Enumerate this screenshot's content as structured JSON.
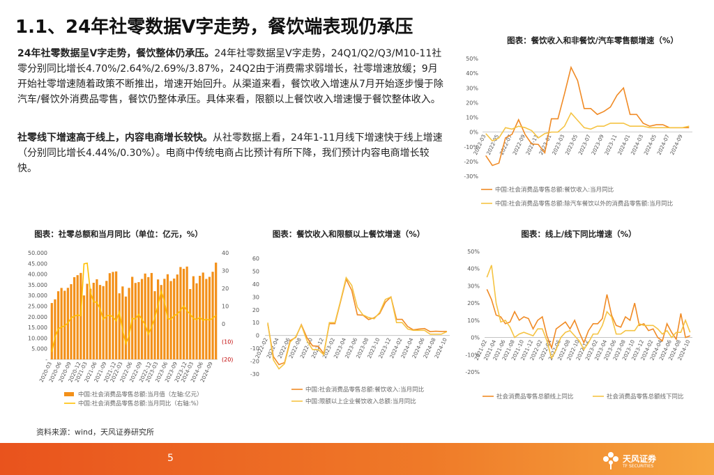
{
  "title": "1.1、24年社零数据V字走势，餐饮端表现仍承压",
  "paragraphs": [
    {
      "lead": "24年社零数据呈V字走势，餐饮整体仍承压。",
      "text": "24年社零数据呈V字走势，24Q1/Q2/Q3/M10-11社零分别同比增长4.70%/2.64%/2.69%/3.87%，24Q2由于消费需求弱增长，社零增速放缓；9月开始社零增速随着政策不断推出，增速开始回升。从渠道来看，餐饮收入增速从7月开始逐步慢于除汽车/餐饮外消费品零售，餐饮仍整体承压。具体来看，限额以上餐饮收入增速慢于餐饮整体收入。"
    },
    {
      "lead": "社零线下增速高于线上，内容电商增长较快。",
      "text": "从社零数据上看，24年1-11月线下增速快于线上增速（分别同比增长4.44%/0.30%）。电商中传统电商占比预计有所下降，我们预计内容电商增长较快。"
    }
  ],
  "source": "资料来源：wind，天风证券研究所",
  "page_number": "5",
  "logo": {
    "name": "天风证券",
    "sub": "TF SECURITIES"
  },
  "chart_data": [
    {
      "type": "line",
      "title": "图表：餐饮收入和非餐饮/汽车零售额增速（%）",
      "categories": [
        "2022-03",
        null,
        "2022-05",
        null,
        "2022-07",
        null,
        "2022-09",
        null,
        "2022-11",
        null,
        "2023-01",
        null,
        "2023-03",
        null,
        "2023-05",
        null,
        "2023-07",
        null,
        "2023-09",
        null,
        "2023-11",
        null,
        "2024-01",
        null,
        "2024-03",
        null,
        "2024-05",
        null,
        "2024-07",
        null,
        "2024-09",
        null
      ],
      "series": [
        {
          "name": "中国:社会消费品零售总额:餐饮收入:当月同比",
          "color": "#f08a24",
          "values": [
            -16,
            -22.7,
            -21.1,
            -4,
            -1.5,
            8.4,
            -1.7,
            -8.1,
            -8.4,
            -14.1,
            9,
            9,
            26,
            44,
            35,
            16,
            16,
            12,
            14,
            17,
            25,
            30,
            12,
            12,
            6,
            4,
            5,
            5,
            3,
            3,
            3,
            3
          ]
        },
        {
          "name": "中国:社会消费品零售总额:除汽车餐饮以外的消费品零售额:当月同比",
          "color": "#f5c342",
          "values": [
            -1,
            -6,
            -4,
            3,
            2,
            4,
            3,
            1,
            -4,
            -1,
            0,
            0,
            4,
            13,
            8,
            3,
            2,
            4,
            4,
            6,
            6,
            6,
            4,
            4,
            4,
            3,
            3,
            3,
            3,
            3,
            3,
            4
          ]
        }
      ],
      "ylim": [
        -30,
        50
      ],
      "yticks": [
        {
          "value": -30,
          "label": "-30%"
        },
        {
          "value": -20,
          "label": "-20%"
        },
        {
          "value": -10,
          "label": "-10%"
        },
        {
          "value": 0,
          "label": "0%"
        },
        {
          "value": 10,
          "label": "10%"
        },
        {
          "value": 20,
          "label": "20%"
        },
        {
          "value": 30,
          "label": "30%"
        },
        {
          "value": 40,
          "label": "40%"
        },
        {
          "value": 50,
          "label": "50%"
        }
      ],
      "grid": false
    },
    {
      "type": "combo",
      "title": "图表：社零总额和当月同比（单位：亿元，%）",
      "categories": [
        "2020-03",
        null,
        null,
        "2020-06",
        null,
        null,
        "2020-09",
        null,
        null,
        "2020-12",
        null,
        "2021-03",
        null,
        null,
        "2021-06",
        null,
        null,
        "2021-09",
        null,
        null,
        "2021-12",
        null,
        "2022-03",
        null,
        null,
        "2022-06",
        null,
        null,
        "2022-09",
        null,
        null,
        "2022-12",
        null,
        "2023-03",
        null,
        null,
        "2023-06",
        null,
        null,
        "2023-09",
        null,
        null,
        "2023-12",
        null,
        "2024-03",
        null,
        null,
        "2024-06",
        null,
        null,
        "2024-09",
        null
      ],
      "series": [
        {
          "name": "中国:社会消费品零售总额:当月值（左轴:亿元）",
          "type": "bar",
          "color": "#f39019",
          "values": [
            26450,
            28178,
            31973,
            33526,
            32203,
            33571,
            35295,
            38577,
            39514,
            40566,
            30000,
            35484,
            33153,
            35945,
            37586,
            34925,
            34395,
            36833,
            40454,
            41043,
            41269,
            31000,
            34233,
            29483,
            33547,
            38742,
            35870,
            36258,
            37745,
            40271,
            38615,
            40542,
            32000,
            37511,
            34910,
            37803,
            39951,
            36761,
            37933,
            39826,
            43333,
            42505,
            43550,
            33000,
            39020,
            35699,
            39211,
            40732,
            37757,
            38726,
            41112,
            45396
          ]
        },
        {
          "name": "中国:社会消费品零售总额:当月同比（右轴:%）",
          "type": "line",
          "axis": "y2",
          "color": "#ffc000",
          "values": [
            -15.8,
            -7.5,
            -2.8,
            -1.8,
            -1.1,
            0.5,
            3.3,
            4.3,
            5,
            4.6,
            33.8,
            34.2,
            17.7,
            12.4,
            12.1,
            8.5,
            2.5,
            4.4,
            4.9,
            3.9,
            1.7,
            6.7,
            -3.5,
            -11.1,
            -6.7,
            3.1,
            2.7,
            5.4,
            2.5,
            -0.5,
            -5.9,
            -1.8,
            3.5,
            10.6,
            18.4,
            12.7,
            3.1,
            2.5,
            4.6,
            5.5,
            7.6,
            10.1,
            7.4,
            5.5,
            3.1,
            2.3,
            3.7,
            2,
            2.7,
            2.1,
            3.2,
            4.8
          ]
        }
      ],
      "ylim": [
        0,
        50000
      ],
      "yticks": [
        {
          "value": 0,
          "label": "-"
        },
        {
          "value": 5000,
          "label": "5.000"
        },
        {
          "value": 10000,
          "label": "10.000"
        },
        {
          "value": 15000,
          "label": "15.000"
        },
        {
          "value": 20000,
          "label": "20.000"
        },
        {
          "value": 25000,
          "label": "25.000"
        },
        {
          "value": 30000,
          "label": "30.000"
        },
        {
          "value": 35000,
          "label": "35.000"
        },
        {
          "value": 40000,
          "label": "40.000"
        },
        {
          "value": 45000,
          "label": "45.000"
        },
        {
          "value": 50000,
          "label": "50.000"
        }
      ],
      "y2lim": [
        -20,
        40
      ],
      "y2ticks": [
        {
          "value": -20,
          "label": "(20)"
        },
        {
          "value": -10,
          "label": "(10)"
        },
        0,
        10,
        20,
        30,
        40
      ],
      "y2_negative_tick_color": "#c00000",
      "grid": false
    },
    {
      "type": "line",
      "title": "图表：餐饮收入和限额以上餐饮增速（%）",
      "categories": [
        "2022-02",
        null,
        "2022-04",
        null,
        "2022-06",
        null,
        "2022-08",
        null,
        "2022-10",
        null,
        "2022-12",
        null,
        "2023-02",
        null,
        "2023-04",
        null,
        "2023-06",
        null,
        "2023-08",
        null,
        "2023-10",
        null,
        "2023-12",
        null,
        "2024-02",
        null,
        "2024-04",
        null,
        "2024-06",
        null,
        "2024-08",
        null,
        "2024-10"
      ],
      "series": [
        {
          "name": "中国:社会消费品零售总额:餐饮收入:当月同比",
          "color": "#f08a24",
          "values": [
            8.9,
            -16.4,
            -22.7,
            -21.1,
            -4,
            -1.5,
            8.4,
            -1.7,
            -8.1,
            -8.4,
            -14.1,
            9.2,
            9.2,
            26.3,
            43.8,
            35.1,
            16.1,
            15.8,
            12.4,
            13.8,
            17.1,
            25.8,
            30,
            12.5,
            12.5,
            6.9,
            4.4,
            5,
            5.4,
            3,
            3.3,
            3.1,
            3.2
          ]
        },
        {
          "name": "中国:限额以上企业餐饮收入总额:当月同比",
          "color": "#f5c342",
          "values": [
            10,
            -19,
            -26,
            -22,
            -5,
            -1,
            8,
            -4,
            -11,
            -11,
            -15,
            10,
            10,
            27,
            45,
            39,
            22,
            16,
            14,
            13,
            18,
            28,
            30,
            10,
            10,
            5,
            4,
            4,
            4,
            1,
            1,
            1,
            3
          ]
        }
      ],
      "ylim": [
        -30,
        60
      ],
      "yticks": [
        -30,
        -20,
        -10,
        0,
        10,
        20,
        30,
        40,
        50,
        60
      ],
      "grid": false
    },
    {
      "type": "line",
      "title": "图表：线上/线下同比增速（%）",
      "categories": [
        "2021-02",
        null,
        "2021-04",
        null,
        "2021-06",
        null,
        "2021-08",
        null,
        "2021-10",
        null,
        "2021-12",
        null,
        "2022-02",
        null,
        "2022-04",
        null,
        "2022-06",
        null,
        "2022-08",
        null,
        "2022-10",
        null,
        "2022-12",
        null,
        "2023-02",
        null,
        "2023-04",
        null,
        "2023-06",
        null,
        "2023-08",
        null,
        "2023-10",
        null,
        "2023-12",
        null,
        "2024-02",
        null,
        "2024-04",
        null,
        "2024-06",
        null,
        "2024-08",
        null,
        "2024-10"
      ],
      "series": [
        {
          "name": "社会消费品零售总额线上同比",
          "color": "#f08a24",
          "values": [
            28,
            22,
            13,
            12,
            8,
            9,
            15,
            10,
            12,
            11,
            5,
            10,
            12,
            1,
            -6,
            5,
            7,
            9,
            5,
            10,
            3,
            -3,
            4,
            8,
            8,
            11,
            25,
            13,
            7,
            6,
            12,
            10,
            20,
            7,
            8,
            4,
            5,
            0,
            -2,
            8,
            3,
            -1,
            14,
            0,
            1
          ]
        },
        {
          "name": "社会消费品零售总额线下同比",
          "color": "#f5c342",
          "values": [
            35,
            42,
            20,
            9,
            10,
            6,
            0,
            2,
            3,
            2,
            1,
            5,
            5,
            -2,
            -12,
            -7,
            0,
            3,
            4,
            1,
            -2,
            -7,
            -3,
            2,
            2,
            7,
            15,
            12,
            2,
            2,
            4,
            4,
            4,
            8,
            7,
            7,
            7,
            5,
            2,
            4,
            0,
            3,
            3,
            10,
            3
          ]
        }
      ],
      "ylim": [
        -20,
        50
      ],
      "yticks": [
        {
          "value": -20,
          "label": "-20%"
        },
        {
          "value": -10,
          "label": "-10%"
        },
        {
          "value": 0,
          "label": "0%"
        },
        {
          "value": 10,
          "label": "10%"
        },
        {
          "value": 20,
          "label": "20%"
        },
        {
          "value": 30,
          "label": "30%"
        },
        {
          "value": 40,
          "label": "40%"
        },
        {
          "value": 50,
          "label": "50%"
        }
      ],
      "grid": false
    }
  ]
}
